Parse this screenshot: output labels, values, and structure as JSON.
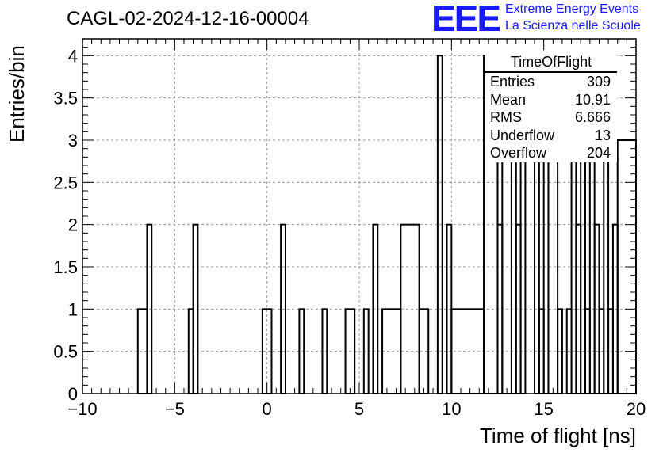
{
  "header": {
    "run_title": "CAGL-02-2024-12-16-00004",
    "logo_text": "EEE",
    "logo_line1": "Extreme Energy Events",
    "logo_line2": "La Scienza nelle Scuole"
  },
  "stats_box": {
    "title": "TimeOfFlight",
    "rows": [
      {
        "label": "Entries",
        "value": "309"
      },
      {
        "label": "Mean",
        "value": "10.91"
      },
      {
        "label": "RMS",
        "value": "6.666"
      },
      {
        "label": "Underflow",
        "value": "13"
      },
      {
        "label": "Overflow",
        "value": "204"
      }
    ]
  },
  "colors": {
    "logo": "#1a1aff",
    "line": "#000000",
    "grid": "#999999"
  },
  "chart_data": {
    "type": "histogram",
    "xlabel": "Time of flight [ns]",
    "ylabel": "Entries/bin",
    "xlim": [
      -10,
      20
    ],
    "ylim": [
      0,
      4.2
    ],
    "x_ticks": [
      -10,
      -5,
      0,
      5,
      10,
      15,
      20
    ],
    "y_ticks": [
      0,
      0.5,
      1,
      1.5,
      2,
      2.5,
      3,
      3.5,
      4
    ],
    "grid": true,
    "bin_width": 0.25,
    "bins": [
      {
        "x0": -7.0,
        "x1": -6.5,
        "y": 1
      },
      {
        "x0": -6.5,
        "x1": -6.25,
        "y": 2
      },
      {
        "x0": -4.25,
        "x1": -4.0,
        "y": 1
      },
      {
        "x0": -4.0,
        "x1": -3.75,
        "y": 2
      },
      {
        "x0": -0.25,
        "x1": 0.25,
        "y": 1
      },
      {
        "x0": 0.75,
        "x1": 1.0,
        "y": 2
      },
      {
        "x0": 1.75,
        "x1": 2.0,
        "y": 1
      },
      {
        "x0": 3.0,
        "x1": 3.25,
        "y": 1
      },
      {
        "x0": 4.25,
        "x1": 4.75,
        "y": 1
      },
      {
        "x0": 5.25,
        "x1": 5.5,
        "y": 1
      },
      {
        "x0": 5.75,
        "x1": 6.0,
        "y": 2
      },
      {
        "x0": 6.25,
        "x1": 7.25,
        "y": 1
      },
      {
        "x0": 7.25,
        "x1": 8.25,
        "y": 2
      },
      {
        "x0": 8.25,
        "x1": 8.75,
        "y": 1
      },
      {
        "x0": 9.25,
        "x1": 9.5,
        "y": 4
      },
      {
        "x0": 9.75,
        "x1": 10.0,
        "y": 2
      },
      {
        "x0": 10.0,
        "x1": 11.75,
        "y": 1
      },
      {
        "x0": 11.75,
        "x1": 12.5,
        "y": 4
      },
      {
        "x0": 12.5,
        "x1": 12.75,
        "y": 2
      },
      {
        "x0": 12.75,
        "x1": 13.25,
        "y": 3
      },
      {
        "x0": 13.25,
        "x1": 13.5,
        "y": 4
      },
      {
        "x0": 13.5,
        "x1": 13.75,
        "y": 2
      },
      {
        "x0": 13.75,
        "x1": 14.0,
        "y": 3
      },
      {
        "x0": 14.5,
        "x1": 14.75,
        "y": 3
      },
      {
        "x0": 14.75,
        "x1": 15.0,
        "y": 1
      },
      {
        "x0": 15.0,
        "x1": 15.25,
        "y": 4
      },
      {
        "x0": 15.25,
        "x1": 15.75,
        "y": 3
      },
      {
        "x0": 15.75,
        "x1": 16.0,
        "y": 1
      },
      {
        "x0": 16.25,
        "x1": 16.5,
        "y": 1
      },
      {
        "x0": 16.5,
        "x1": 16.75,
        "y": 3
      },
      {
        "x0": 16.75,
        "x1": 17.0,
        "y": 2
      },
      {
        "x0": 17.0,
        "x1": 17.25,
        "y": 4
      },
      {
        "x0": 17.25,
        "x1": 17.5,
        "y": 1
      },
      {
        "x0": 17.5,
        "x1": 17.75,
        "y": 3
      },
      {
        "x0": 17.75,
        "x1": 18.0,
        "y": 2
      },
      {
        "x0": 18.0,
        "x1": 18.25,
        "y": 1
      },
      {
        "x0": 18.25,
        "x1": 18.5,
        "y": 4
      },
      {
        "x0": 18.5,
        "x1": 18.75,
        "y": 1
      },
      {
        "x0": 18.75,
        "x1": 19.0,
        "y": 2
      },
      {
        "x0": 19.0,
        "x1": 20.0,
        "y": 3
      }
    ]
  }
}
